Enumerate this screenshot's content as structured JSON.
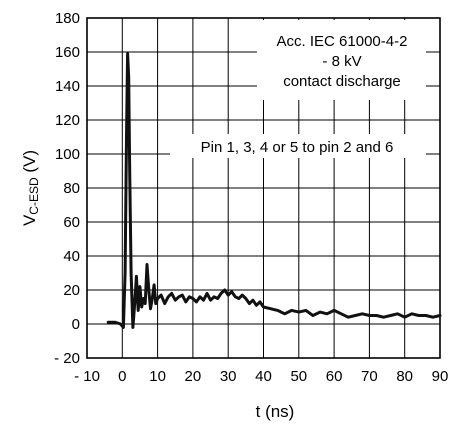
{
  "chart_data": {
    "type": "line",
    "title": "",
    "xlabel": "t (ns)",
    "ylabel_main": "V",
    "ylabel_sub": "C-ESD",
    "ylabel_unit": " (V)",
    "xlim": [
      -10,
      90
    ],
    "ylim": [
      -20,
      180
    ],
    "x_ticks": [
      -10,
      0,
      10,
      20,
      30,
      40,
      50,
      60,
      70,
      80,
      90
    ],
    "x_tick_labels": [
      "- 10",
      "0",
      "10",
      "20",
      "30",
      "40",
      "50",
      "60",
      "70",
      "80",
      "90"
    ],
    "y_ticks": [
      -20,
      0,
      20,
      40,
      60,
      80,
      100,
      120,
      140,
      160,
      180
    ],
    "y_tick_labels": [
      "- 20",
      "0",
      "20",
      "40",
      "60",
      "80",
      "100",
      "120",
      "140",
      "160",
      "180"
    ],
    "grid": true,
    "annotations": [
      {
        "id": "standard",
        "text": "Acc. IEC 61000-4-2"
      },
      {
        "id": "voltage",
        "text": "- 8 kV"
      },
      {
        "id": "discharge",
        "text": "contact discharge"
      },
      {
        "id": "pins",
        "text": "Pin 1, 3, 4 or 5  to pin 2 and 6"
      }
    ],
    "series": [
      {
        "x": [
          -4,
          -2,
          -0.5,
          0.3,
          0.8,
          1.2,
          1.5,
          1.8,
          2.1,
          2.5,
          3.0,
          3.5,
          4.0,
          4.5,
          5.0,
          5.5,
          6.0,
          6.5,
          7.0,
          7.5,
          8.0,
          8.5,
          9.0,
          9.5,
          10.0,
          11,
          12,
          13,
          14,
          15,
          16,
          17,
          18,
          19,
          20,
          21,
          22,
          23,
          24,
          25,
          26,
          27,
          28,
          29,
          30,
          31,
          32,
          33,
          34,
          35,
          36,
          37,
          38,
          39,
          40,
          42,
          44,
          46,
          48,
          50,
          52,
          54,
          56,
          58,
          60,
          62,
          64,
          66,
          68,
          70,
          72,
          74,
          76,
          78,
          80,
          82,
          84,
          86,
          88,
          90
        ],
        "y": [
          1,
          1,
          0,
          -2,
          30,
          110,
          159,
          145,
          90,
          30,
          -2,
          12,
          28,
          8,
          22,
          10,
          15,
          12,
          35,
          20,
          9,
          15,
          23,
          12,
          15,
          17,
          12,
          16,
          18,
          14,
          16,
          17,
          13,
          16,
          15,
          13,
          16,
          14,
          18,
          14,
          16,
          15,
          18,
          20,
          17,
          19,
          16,
          15,
          17,
          15,
          12,
          14,
          11,
          13,
          10,
          9,
          8,
          6,
          8,
          7,
          8,
          5,
          7,
          6,
          8,
          6,
          4,
          5,
          6,
          5,
          5,
          4,
          5,
          6,
          4,
          6,
          5,
          5,
          4,
          5
        ]
      }
    ]
  }
}
